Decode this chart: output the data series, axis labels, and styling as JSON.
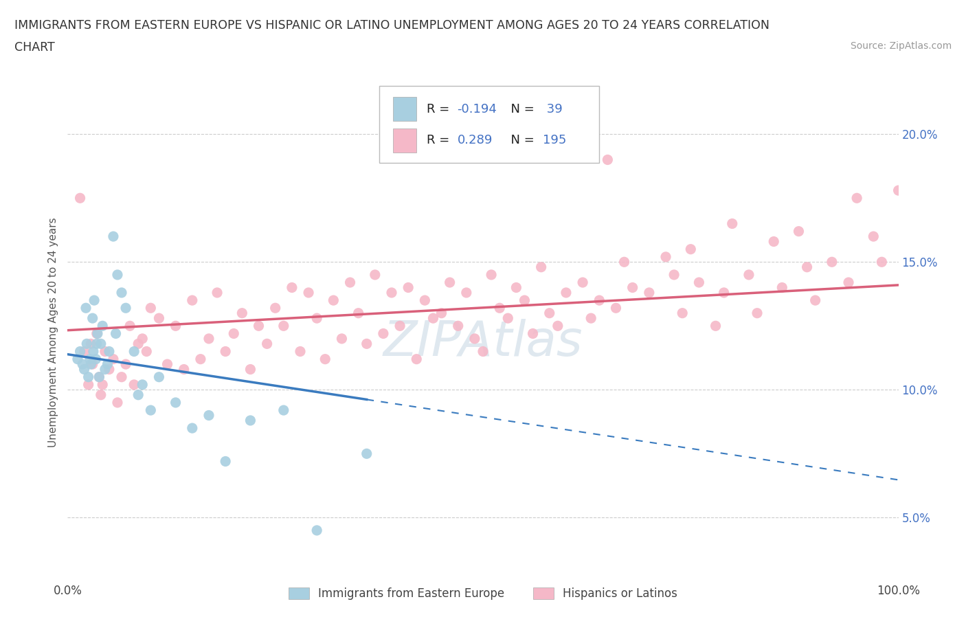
{
  "title_line1": "IMMIGRANTS FROM EASTERN EUROPE VS HISPANIC OR LATINO UNEMPLOYMENT AMONG AGES 20 TO 24 YEARS CORRELATION",
  "title_line2": "CHART",
  "source": "Source: ZipAtlas.com",
  "ylabel": "Unemployment Among Ages 20 to 24 years",
  "xlim": [
    0,
    100
  ],
  "ylim": [
    2.5,
    22
  ],
  "xtick_labels": [
    "0.0%",
    "",
    "",
    "",
    "",
    "100.0%"
  ],
  "xtick_values": [
    0,
    20,
    40,
    60,
    80,
    100
  ],
  "ytick_labels": [
    "5.0%",
    "10.0%",
    "15.0%",
    "20.0%"
  ],
  "ytick_values": [
    5,
    10,
    15,
    20
  ],
  "blue_R": -0.194,
  "blue_N": 39,
  "pink_R": 0.289,
  "pink_N": 195,
  "blue_color": "#a8cfe0",
  "pink_color": "#f5b8c8",
  "blue_line_color": "#3a7bbf",
  "pink_line_color": "#d9607a",
  "watermark": "ZIPAtlas",
  "legend_label_blue": "Immigrants from Eastern Europe",
  "legend_label_pink": "Hispanics or Latinos",
  "blue_scatter_x": [
    1.2,
    1.5,
    1.8,
    2.0,
    2.2,
    2.3,
    2.5,
    2.7,
    2.8,
    3.0,
    3.1,
    3.2,
    3.4,
    3.5,
    3.6,
    3.8,
    4.0,
    4.2,
    4.5,
    4.8,
    5.0,
    5.5,
    5.8,
    6.0,
    6.5,
    7.0,
    8.0,
    8.5,
    9.0,
    10.0,
    11.0,
    13.0,
    15.0,
    17.0,
    19.0,
    22.0,
    26.0,
    30.0,
    36.0
  ],
  "blue_scatter_y": [
    11.2,
    11.5,
    11.0,
    10.8,
    13.2,
    11.8,
    10.5,
    11.2,
    11.0,
    12.8,
    11.5,
    13.5,
    11.2,
    11.8,
    12.2,
    10.5,
    11.8,
    12.5,
    10.8,
    11.0,
    11.5,
    16.0,
    12.2,
    14.5,
    13.8,
    13.2,
    11.5,
    9.8,
    10.2,
    9.2,
    10.5,
    9.5,
    8.5,
    9.0,
    7.2,
    8.8,
    9.2,
    4.5,
    7.5
  ],
  "pink_scatter_x": [
    1.5,
    2.0,
    2.5,
    2.8,
    3.0,
    3.5,
    3.8,
    4.0,
    4.2,
    4.5,
    5.0,
    5.5,
    6.0,
    6.5,
    7.0,
    7.5,
    8.0,
    8.5,
    9.0,
    9.5,
    10.0,
    11.0,
    12.0,
    13.0,
    14.0,
    15.0,
    16.0,
    17.0,
    18.0,
    19.0,
    20.0,
    21.0,
    22.0,
    23.0,
    24.0,
    25.0,
    26.0,
    27.0,
    28.0,
    29.0,
    30.0,
    31.0,
    32.0,
    33.0,
    34.0,
    35.0,
    36.0,
    37.0,
    38.0,
    39.0,
    40.0,
    41.0,
    42.0,
    43.0,
    44.0,
    45.0,
    46.0,
    47.0,
    48.0,
    49.0,
    50.0,
    51.0,
    52.0,
    53.0,
    54.0,
    55.0,
    56.0,
    57.0,
    58.0,
    59.0,
    60.0,
    62.0,
    63.0,
    64.0,
    65.0,
    66.0,
    67.0,
    68.0,
    70.0,
    72.0,
    73.0,
    74.0,
    75.0,
    76.0,
    78.0,
    79.0,
    80.0,
    82.0,
    83.0,
    85.0,
    86.0,
    88.0,
    89.0,
    90.0,
    92.0,
    94.0,
    95.0,
    97.0,
    98.0,
    100.0
  ],
  "pink_scatter_y": [
    17.5,
    11.5,
    10.2,
    11.8,
    11.0,
    12.2,
    10.5,
    9.8,
    10.2,
    11.5,
    10.8,
    11.2,
    9.5,
    10.5,
    11.0,
    12.5,
    10.2,
    11.8,
    12.0,
    11.5,
    13.2,
    12.8,
    11.0,
    12.5,
    10.8,
    13.5,
    11.2,
    12.0,
    13.8,
    11.5,
    12.2,
    13.0,
    10.8,
    12.5,
    11.8,
    13.2,
    12.5,
    14.0,
    11.5,
    13.8,
    12.8,
    11.2,
    13.5,
    12.0,
    14.2,
    13.0,
    11.8,
    14.5,
    12.2,
    13.8,
    12.5,
    14.0,
    11.2,
    13.5,
    12.8,
    13.0,
    14.2,
    12.5,
    13.8,
    12.0,
    11.5,
    14.5,
    13.2,
    12.8,
    14.0,
    13.5,
    12.2,
    14.8,
    13.0,
    12.5,
    13.8,
    14.2,
    12.8,
    13.5,
    19.0,
    13.2,
    15.0,
    14.0,
    13.8,
    15.2,
    14.5,
    13.0,
    15.5,
    14.2,
    12.5,
    13.8,
    16.5,
    14.5,
    13.0,
    15.8,
    14.0,
    16.2,
    14.8,
    13.5,
    15.0,
    14.2,
    17.5,
    16.0,
    15.0,
    17.8
  ]
}
